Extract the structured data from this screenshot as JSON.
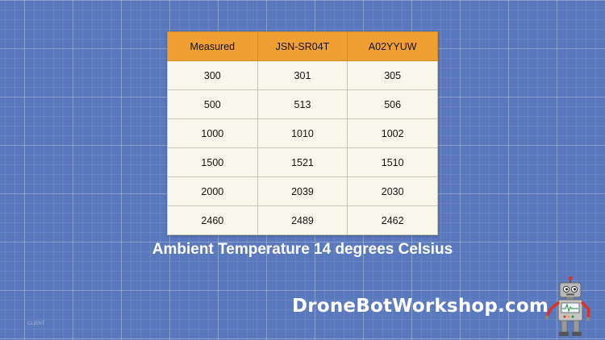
{
  "table": {
    "headers": [
      "Measured",
      "JSN-SR04T",
      "A02YYUW"
    ],
    "rows": [
      [
        "300",
        "301",
        "305"
      ],
      [
        "500",
        "513",
        "506"
      ],
      [
        "1000",
        "1010",
        "1002"
      ],
      [
        "1500",
        "1521",
        "1510"
      ],
      [
        "2000",
        "2039",
        "2030"
      ],
      [
        "2460",
        "2489",
        "2462"
      ]
    ]
  },
  "caption": "Ambient Temperature 14 degrees Celsius",
  "brand": "DroneBotWorkshop.com",
  "corner_label": "CLIENT",
  "colors": {
    "background": "#5a78bd",
    "header_fill": "#f0a033",
    "cell_fill": "#f9f7ec",
    "robot_arm": "#d9332c"
  },
  "icons": {
    "mascot": "robot-mascot-icon"
  }
}
